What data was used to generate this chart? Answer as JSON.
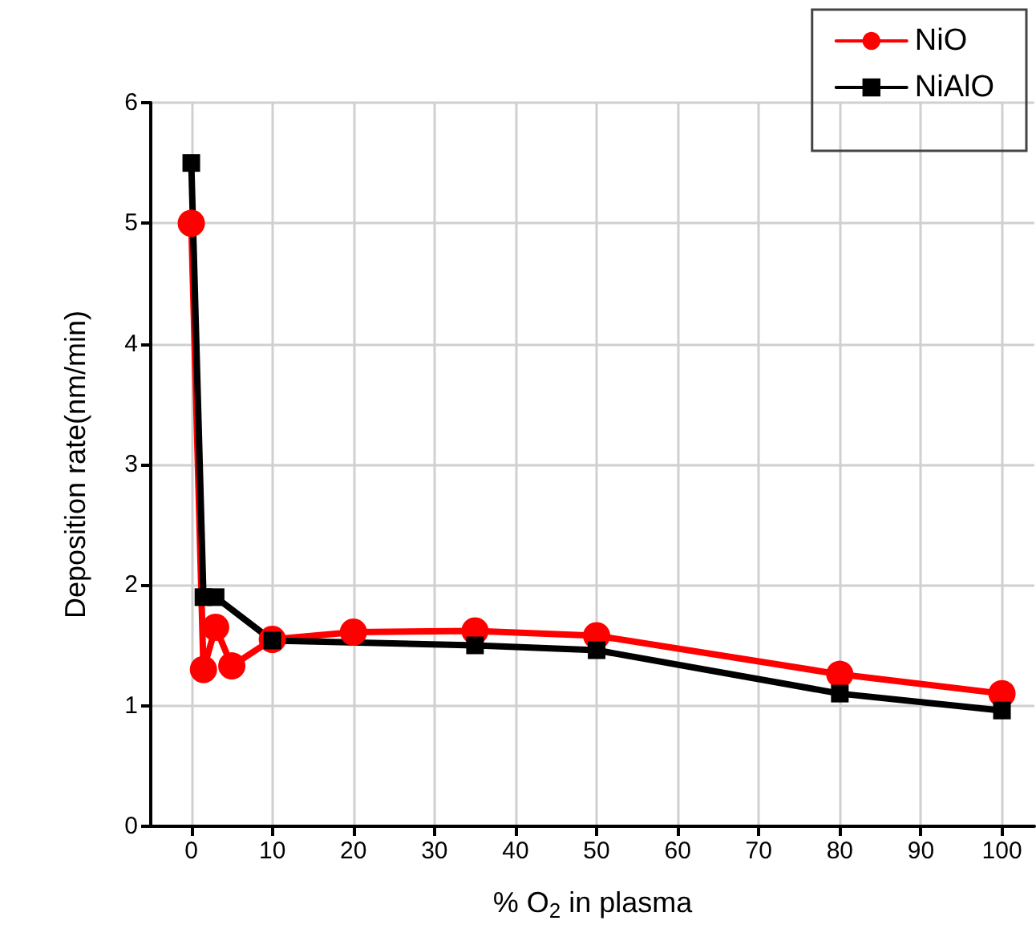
{
  "chart_data": {
    "type": "line",
    "xlabel": "% O$_{2}$ in plasma",
    "ylabel": "Deposition rate(nm/min)",
    "xlim": [
      -5,
      104
    ],
    "xticks": [
      0,
      10,
      20,
      30,
      40,
      50,
      60,
      70,
      80,
      90,
      100
    ],
    "ylim": [
      0,
      6
    ],
    "yticks": [
      0,
      1,
      2,
      3,
      4,
      5,
      6
    ],
    "grid": true,
    "legend": "top right",
    "line_style": "solid",
    "series": [
      {
        "name": "NiO",
        "color": "#ff0000",
        "marker": "circle",
        "x": [
          0,
          1.5,
          3,
          5,
          10,
          20,
          35,
          50,
          80,
          100
        ],
        "values": [
          5.0,
          1.3,
          1.65,
          1.33,
          1.55,
          1.61,
          1.62,
          1.58,
          1.26,
          1.1
        ]
      },
      {
        "name": "NiAlO",
        "color": "#000000",
        "marker": "square",
        "x": [
          0,
          1.5,
          3,
          10,
          35,
          50,
          80,
          100
        ],
        "values": [
          5.5,
          1.9,
          1.9,
          1.54,
          1.5,
          1.46,
          1.1,
          0.96
        ]
      }
    ]
  }
}
